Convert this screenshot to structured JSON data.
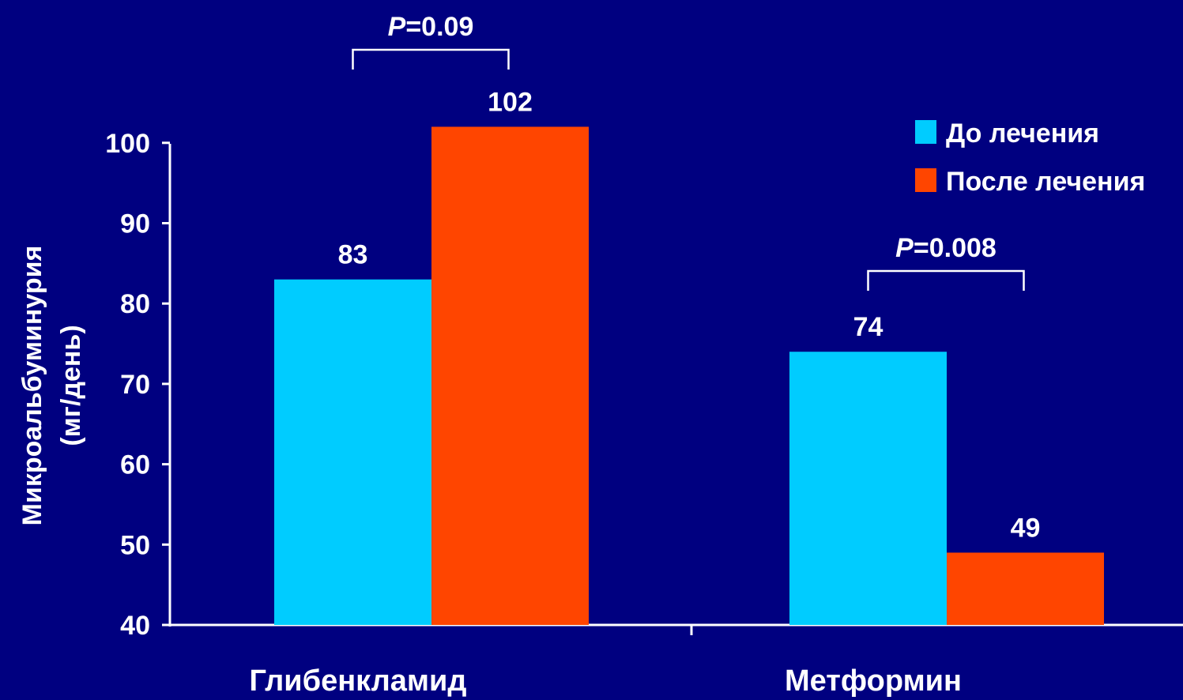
{
  "chart_data": {
    "type": "bar",
    "categories": [
      "Глибенкламид",
      "Метформин"
    ],
    "series": [
      {
        "name": "До лечения",
        "values": [
          83,
          74
        ],
        "color": "#00CCFF"
      },
      {
        "name": "После лечения",
        "values": [
          102,
          49
        ],
        "color": "#FF4500"
      }
    ],
    "ylabel_lines": [
      "Микроальбуминурия",
      "(мг/день)"
    ],
    "ylim": [
      40,
      100
    ],
    "yticks": [
      40,
      50,
      60,
      70,
      80,
      90,
      100
    ],
    "data_labels": [
      "83",
      "102",
      "74",
      "49"
    ],
    "legend_position": "top-right",
    "grid": false,
    "annotations": [
      {
        "category": "Глибенкламид",
        "p_symbol": "P",
        "p_rest": "=0.09"
      },
      {
        "category": "Метформин",
        "p_symbol": "P",
        "p_rest": "=0.008"
      }
    ]
  },
  "colors": {
    "background": "#000080",
    "axis": "#ffffff",
    "text": "#ffffff"
  }
}
